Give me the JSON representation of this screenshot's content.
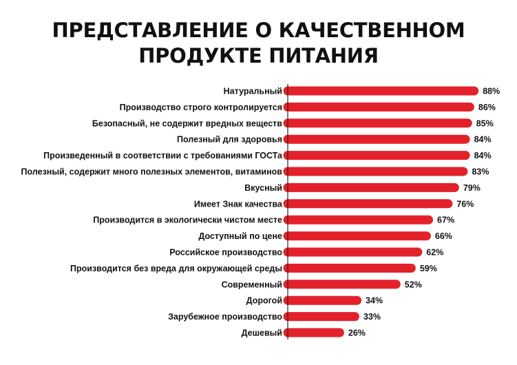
{
  "chart_data": {
    "type": "bar",
    "orientation": "horizontal",
    "title_lines": [
      "ПРЕДСТАВЛЕНИЕ О КАЧЕСТВЕННОМ",
      "ПРОДУКТЕ ПИТАНИЯ"
    ],
    "categories": [
      "Натуральный",
      "Производство строго контролируется",
      "Безопасный, не содержит вредных веществ",
      "Полезный для здоровья",
      "Произведенный в соответствии с требованиями ГОСТа",
      "Полезный, содержит много полезных элементов, витаминов",
      "Вкусный",
      "Имеет Знак качества",
      "Производится в экологически чистом месте",
      "Доступный по цене",
      "Российское производство",
      "Производится без вреда для окружающей среды",
      "Современный",
      "Дорогой",
      "Зарубежное производство",
      "Дешевый"
    ],
    "values": [
      88,
      86,
      85,
      84,
      84,
      83,
      79,
      76,
      67,
      66,
      62,
      59,
      52,
      34,
      33,
      26
    ],
    "value_labels": [
      "88%",
      "86%",
      "85%",
      "84%",
      "84%",
      "83%",
      "79%",
      "76%",
      "67%",
      "66%",
      "62%",
      "59%",
      "52%",
      "34%",
      "33%",
      "26%"
    ],
    "xlim": [
      0,
      100
    ],
    "grid": false,
    "legend": "none",
    "bar_color": "#e3212b",
    "axis_color": "#222222"
  }
}
